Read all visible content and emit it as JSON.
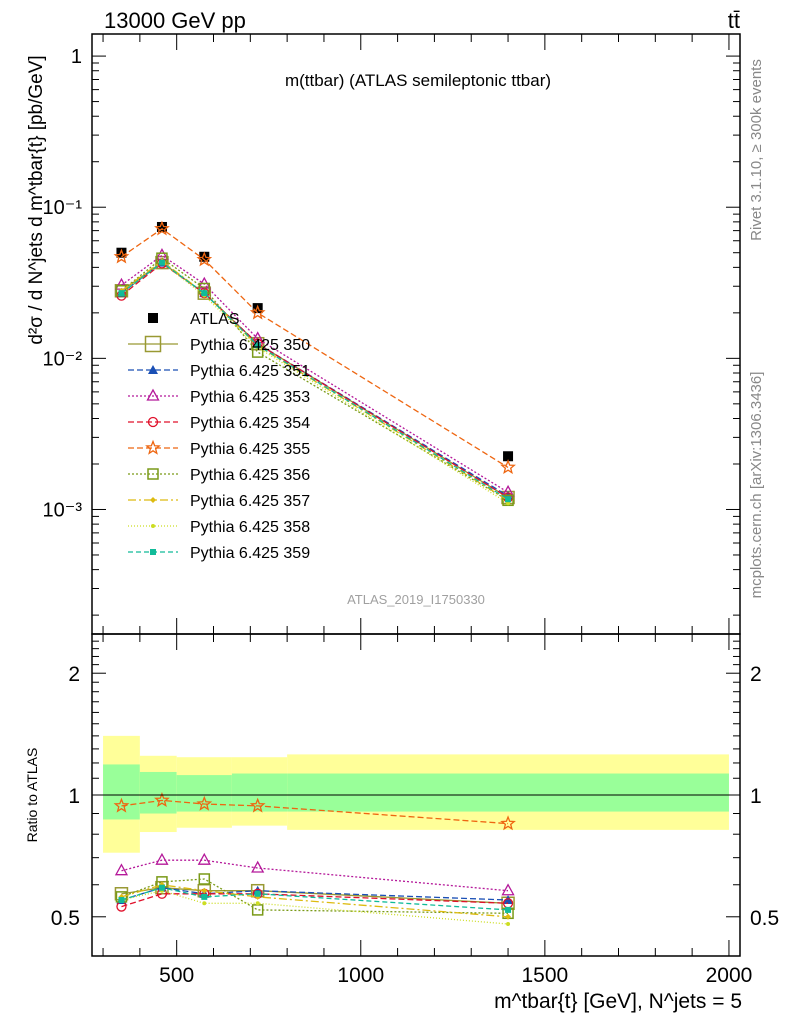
{
  "header": {
    "energy_label": "13000 GeV pp",
    "process_label": "tt̄",
    "plot_title": "m(ttbar) (ATLAS semileptonic ttbar)",
    "analysis_id": "ATLAS_2019_I1750330",
    "rivet_label": "Rivet 3.1.10, ≥ 300k events",
    "source_label": "mcplots.cern.ch [arXiv:1306.3436]"
  },
  "axes": {
    "ylabel_main": "d²σ / d N^jets d m^tbar{t} [pb/GeV]",
    "ylabel_ratio": "Ratio to ATLAS",
    "xlabel": "m^tbar{t} [GeV], N^jets = 5",
    "main_ticks": [
      "10⁻³",
      "10⁻²",
      "10⁻¹",
      "1"
    ],
    "ratio_ticks": [
      "0.5",
      "1",
      "2"
    ],
    "x_ticks": [
      "500",
      "1000",
      "1500",
      "2000"
    ]
  },
  "chart_data": [
    {
      "type": "line",
      "panel": "main",
      "log_y": true,
      "xlim": [
        270,
        2030
      ],
      "ylim": [
        0.00015,
        1.4
      ],
      "x": [
        350,
        460,
        575,
        720,
        1400
      ],
      "bin_edges": [
        300,
        400,
        500,
        650,
        800,
        2000
      ],
      "legend_position": "left, below data",
      "series": [
        {
          "name": "ATLAS",
          "marker": "filled-square",
          "color": "#000000",
          "dash": "",
          "values": [
            0.05,
            0.074,
            0.047,
            0.0215,
            0.00225
          ]
        },
        {
          "name": "Pythia 6.425 350",
          "marker": "open-square-large",
          "color": "#999933",
          "dash": "",
          "values": [
            0.028,
            0.043,
            0.027,
            0.0125,
            0.0012
          ]
        },
        {
          "name": "Pythia 6.425 351",
          "marker": "filled-triangle",
          "color": "#1a4fb5",
          "dash": "6,3",
          "values": [
            0.027,
            0.043,
            0.027,
            0.0125,
            0.00123
          ]
        },
        {
          "name": "Pythia 6.425 353",
          "marker": "open-triangle",
          "color": "#b5199a",
          "dash": "2,2",
          "values": [
            0.0305,
            0.048,
            0.031,
            0.0135,
            0.0013
          ]
        },
        {
          "name": "Pythia 6.425 354",
          "marker": "open-circle",
          "color": "#e0102a",
          "dash": "6,3",
          "values": [
            0.026,
            0.0425,
            0.027,
            0.0125,
            0.0012
          ]
        },
        {
          "name": "Pythia 6.425 355",
          "marker": "open-star",
          "color": "#ee6611",
          "dash": "6,3",
          "values": [
            0.047,
            0.072,
            0.045,
            0.02,
            0.0019
          ]
        },
        {
          "name": "Pythia 6.425 356",
          "marker": "open-square",
          "color": "#7a9a18",
          "dash": "2,2",
          "values": [
            0.028,
            0.046,
            0.029,
            0.011,
            0.00115
          ]
        },
        {
          "name": "Pythia 6.425 357",
          "marker": "filled-diamond-small",
          "color": "#ddbb10",
          "dash": "8,3,2,3",
          "values": [
            0.028,
            0.044,
            0.027,
            0.0121,
            0.00115
          ]
        },
        {
          "name": "Pythia 6.425 358",
          "marker": "dot",
          "color": "#ccdd22",
          "dash": "1,2",
          "values": [
            0.027,
            0.043,
            0.026,
            0.0118,
            0.0011
          ]
        },
        {
          "name": "Pythia 6.425 359",
          "marker": "filled-square-small",
          "color": "#11bb99",
          "dash": "5,3",
          "values": [
            0.027,
            0.043,
            0.027,
            0.0122,
            0.00117
          ]
        }
      ]
    },
    {
      "type": "line",
      "panel": "ratio",
      "log_y": true,
      "xlim": [
        270,
        2030
      ],
      "ylim": [
        0.4,
        2.5
      ],
      "x": [
        350,
        460,
        575,
        720,
        1400
      ],
      "reference_line": 1,
      "bands": {
        "bin_edges": [
          300,
          400,
          500,
          650,
          800,
          2000
        ],
        "inner_low": [
          0.87,
          0.9,
          0.91,
          0.91,
          0.91
        ],
        "inner_high": [
          1.19,
          1.14,
          1.12,
          1.13,
          1.13
        ],
        "outer_low": [
          0.72,
          0.81,
          0.83,
          0.84,
          0.82
        ],
        "outer_high": [
          1.4,
          1.25,
          1.24,
          1.24,
          1.26
        ],
        "inner_color": "#99ff99",
        "outer_color": "#ffff99"
      },
      "series": [
        {
          "name": "Pythia 6.425 350",
          "values": [
            0.57,
            0.59,
            0.58,
            0.58,
            0.54
          ]
        },
        {
          "name": "Pythia 6.425 351",
          "values": [
            0.55,
            0.59,
            0.57,
            0.58,
            0.55
          ]
        },
        {
          "name": "Pythia 6.425 353",
          "values": [
            0.65,
            0.69,
            0.69,
            0.66,
            0.58
          ]
        },
        {
          "name": "Pythia 6.425 354",
          "values": [
            0.53,
            0.57,
            0.57,
            0.57,
            0.54
          ]
        },
        {
          "name": "Pythia 6.425 355",
          "values": [
            0.94,
            0.97,
            0.95,
            0.94,
            0.85
          ]
        },
        {
          "name": "Pythia 6.425 356",
          "values": [
            0.56,
            0.61,
            0.62,
            0.52,
            0.51
          ]
        },
        {
          "name": "Pythia 6.425 357",
          "values": [
            0.56,
            0.6,
            0.58,
            0.56,
            0.5
          ]
        },
        {
          "name": "Pythia 6.425 358",
          "values": [
            0.55,
            0.58,
            0.54,
            0.54,
            0.48
          ]
        },
        {
          "name": "Pythia 6.425 359",
          "values": [
            0.55,
            0.59,
            0.56,
            0.57,
            0.52
          ]
        }
      ]
    }
  ]
}
